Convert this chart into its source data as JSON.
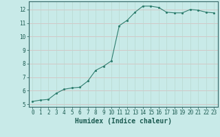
{
  "x": [
    0,
    1,
    2,
    3,
    4,
    5,
    6,
    7,
    8,
    9,
    10,
    11,
    12,
    13,
    14,
    15,
    16,
    17,
    18,
    19,
    20,
    21,
    22,
    23
  ],
  "y": [
    5.2,
    5.3,
    5.35,
    5.8,
    6.1,
    6.2,
    6.25,
    6.7,
    7.5,
    7.8,
    8.2,
    10.8,
    11.2,
    11.8,
    12.25,
    12.25,
    12.15,
    11.8,
    11.75,
    11.75,
    12.0,
    11.95,
    11.8,
    11.75
  ],
  "xlabel": "Humidex (Indice chaleur)",
  "ylim": [
    4.8,
    12.6
  ],
  "xlim": [
    -0.5,
    23.5
  ],
  "yticks": [
    5,
    6,
    7,
    8,
    9,
    10,
    11,
    12
  ],
  "xticks": [
    0,
    1,
    2,
    3,
    4,
    5,
    6,
    7,
    8,
    9,
    10,
    11,
    12,
    13,
    14,
    15,
    16,
    17,
    18,
    19,
    20,
    21,
    22,
    23
  ],
  "line_color": "#2e7d6e",
  "marker_color": "#2e7d6e",
  "bg_color": "#c8eae8",
  "grid_color_h": "#d8b8b8",
  "grid_color_v": "#b8d8d0",
  "axis_bg": "#c8eae8",
  "tick_fontsize": 5.5,
  "xlabel_fontsize": 7
}
